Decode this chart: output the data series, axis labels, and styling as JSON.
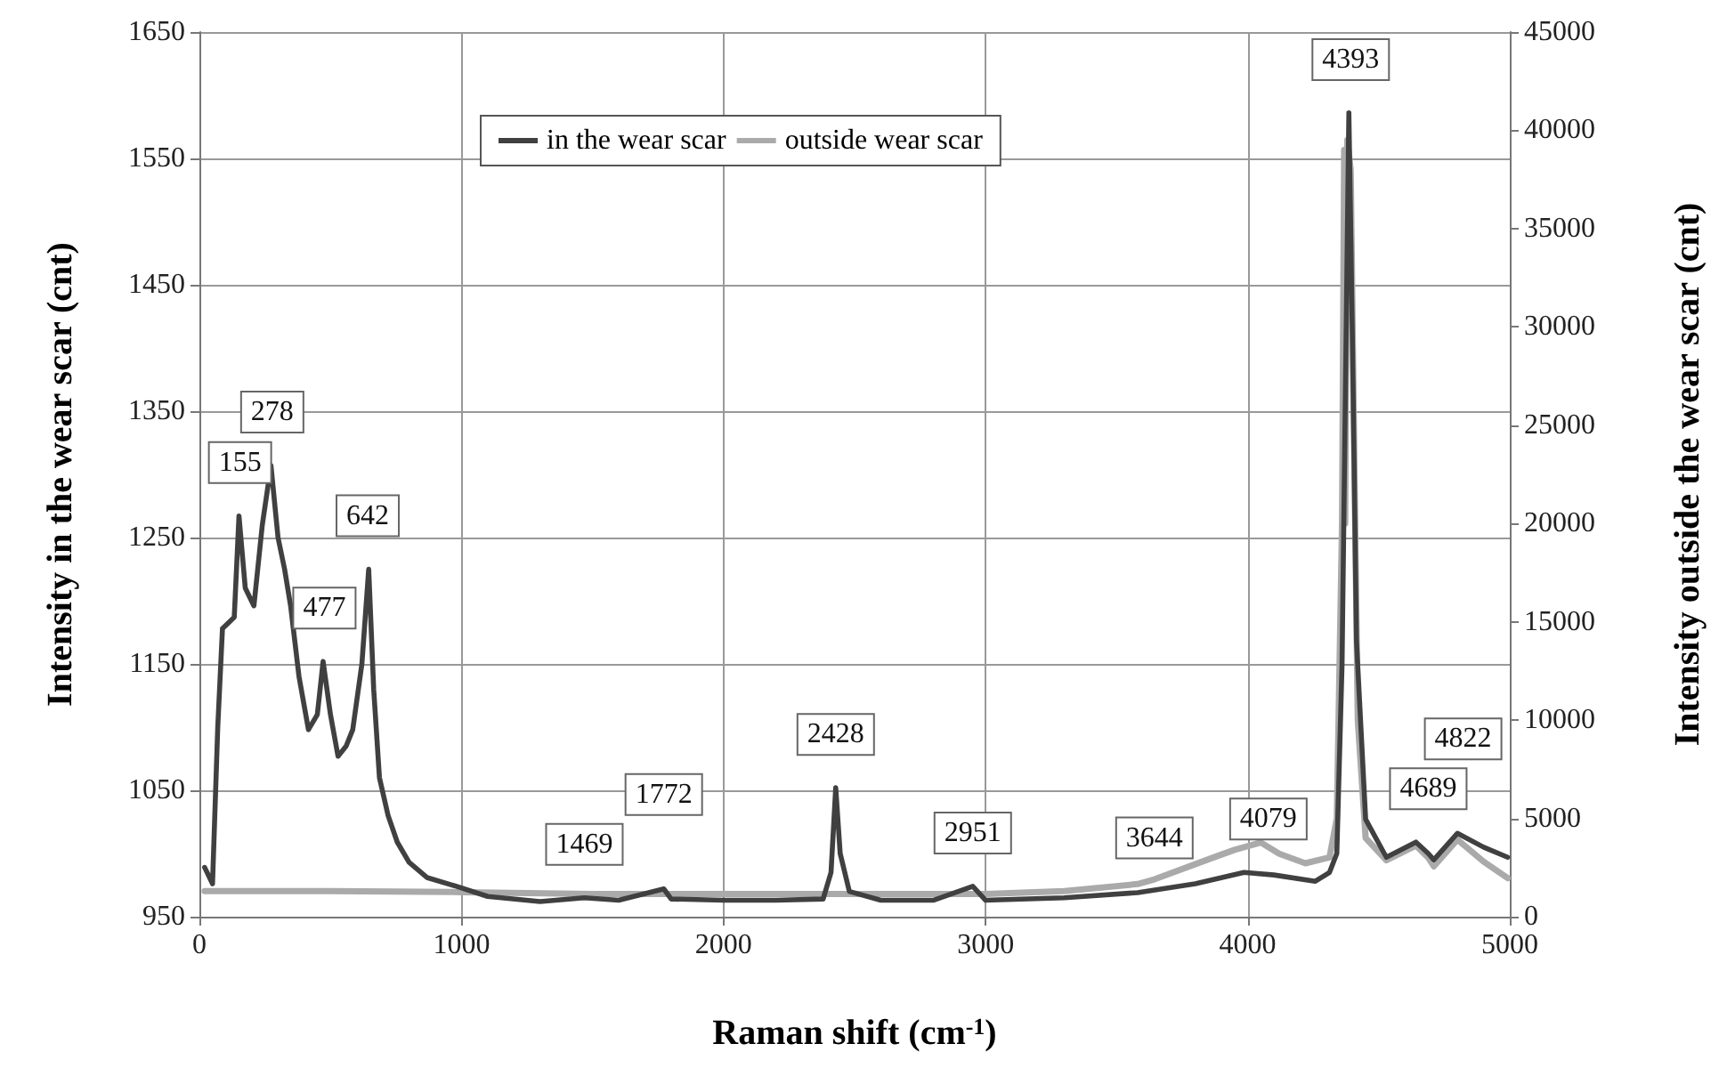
{
  "chart_data": {
    "type": "line",
    "xlabel": "Raman shift (cm$^{-1}$)",
    "ylabel": "Intensity in the wear scar (cnt)",
    "y2label": "Intensity outside the wear scar (cnt)",
    "xlim": [
      0,
      5000
    ],
    "xticks": [
      0,
      1000,
      2000,
      3000,
      4000,
      5000
    ],
    "ylim": [
      950,
      1650
    ],
    "yticks": [
      950,
      1050,
      1150,
      1250,
      1350,
      1450,
      1550,
      1650
    ],
    "y2lim": [
      0,
      45000
    ],
    "y2ticks": [
      0,
      5000,
      10000,
      15000,
      20000,
      25000,
      30000,
      35000,
      40000,
      45000
    ],
    "grid": true,
    "legend": "top",
    "marker": "none",
    "line_style": "solid",
    "series": [
      {
        "name": "in the wear scar",
        "color": "#404040",
        "x": [
          20,
          50,
          70,
          88,
          133,
          151,
          175,
          208,
          240,
          273,
          300,
          325,
          348,
          380,
          416,
          450,
          472,
          500,
          529,
          560,
          585,
          620,
          646,
          665,
          687,
          720,
          755,
          800,
          868,
          981,
          1100,
          1300,
          1469,
          1600,
          1772,
          1800,
          2000,
          2200,
          2380,
          2410,
          2428,
          2445,
          2480,
          2600,
          2800,
          2951,
          3000,
          3300,
          3580,
          3800,
          3986,
          4100,
          4258,
          4312,
          4340,
          4360,
          4386,
          4400,
          4415,
          4450,
          4529,
          4642,
          4689,
          4710,
          4800,
          4900,
          4992
        ],
        "values": [
          989,
          976,
          1100,
          1178,
          1187,
          1267,
          1210,
          1196,
          1260,
          1307,
          1250,
          1225,
          1196,
          1140,
          1098,
          1110,
          1152,
          1110,
          1077,
          1085,
          1098,
          1150,
          1225,
          1130,
          1060,
          1030,
          1009,
          993,
          981,
          974,
          966,
          962,
          965,
          963,
          972,
          964,
          963,
          963,
          964,
          985,
          1052,
          1000,
          970,
          963,
          963,
          974,
          963,
          965,
          969,
          976,
          985,
          983,
          978,
          985,
          1000,
          1150,
          1586,
          1400,
          1168,
          1027,
          997,
          1009,
          1000,
          995,
          1016,
          1005,
          997
        ]
      },
      {
        "name": "outside wear scar",
        "color": "#aaaaaa",
        "axis": "y2",
        "x": [
          20,
          500,
          1000,
          1500,
          2000,
          2500,
          3000,
          3300,
          3580,
          3644,
          3870,
          3950,
          4050,
          4120,
          4220,
          4312,
          4340,
          4360,
          4368,
          4372,
          4380,
          4393,
          4405,
          4420,
          4450,
          4529,
          4642,
          4689,
          4710,
          4800,
          4900,
          4992
        ],
        "values": [
          1300,
          1300,
          1250,
          1150,
          1150,
          1150,
          1150,
          1300,
          1660,
          1900,
          3015,
          3400,
          3775,
          3200,
          2716,
          3015,
          5000,
          20100,
          39000,
          20000,
          39500,
          38000,
          25000,
          10000,
          4000,
          2870,
          3620,
          3000,
          2560,
          3920,
          2800,
          1960
        ]
      }
    ],
    "annotations": [
      {
        "text": "155",
        "x": 155,
        "y": 1267
      },
      {
        "text": "278",
        "x": 278,
        "y": 1307
      },
      {
        "text": "477",
        "x": 477,
        "y": 1152
      },
      {
        "text": "642",
        "x": 642,
        "y": 1225
      },
      {
        "text": "1469",
        "x": 1469,
        "y": 965
      },
      {
        "text": "1772",
        "x": 1772,
        "y": 972
      },
      {
        "text": "2428",
        "x": 2428,
        "y": 1052
      },
      {
        "text": "2951",
        "x": 2951,
        "y": 974
      },
      {
        "text": "3644",
        "x": 3644,
        "y": 970
      },
      {
        "text": "4079",
        "x": 4079,
        "y": 985
      },
      {
        "text": "4393",
        "x": 4393,
        "y": 1586
      },
      {
        "text": "4689",
        "x": 4689,
        "y": 1009
      },
      {
        "text": "4822",
        "x": 4822,
        "y": 1016
      }
    ]
  }
}
